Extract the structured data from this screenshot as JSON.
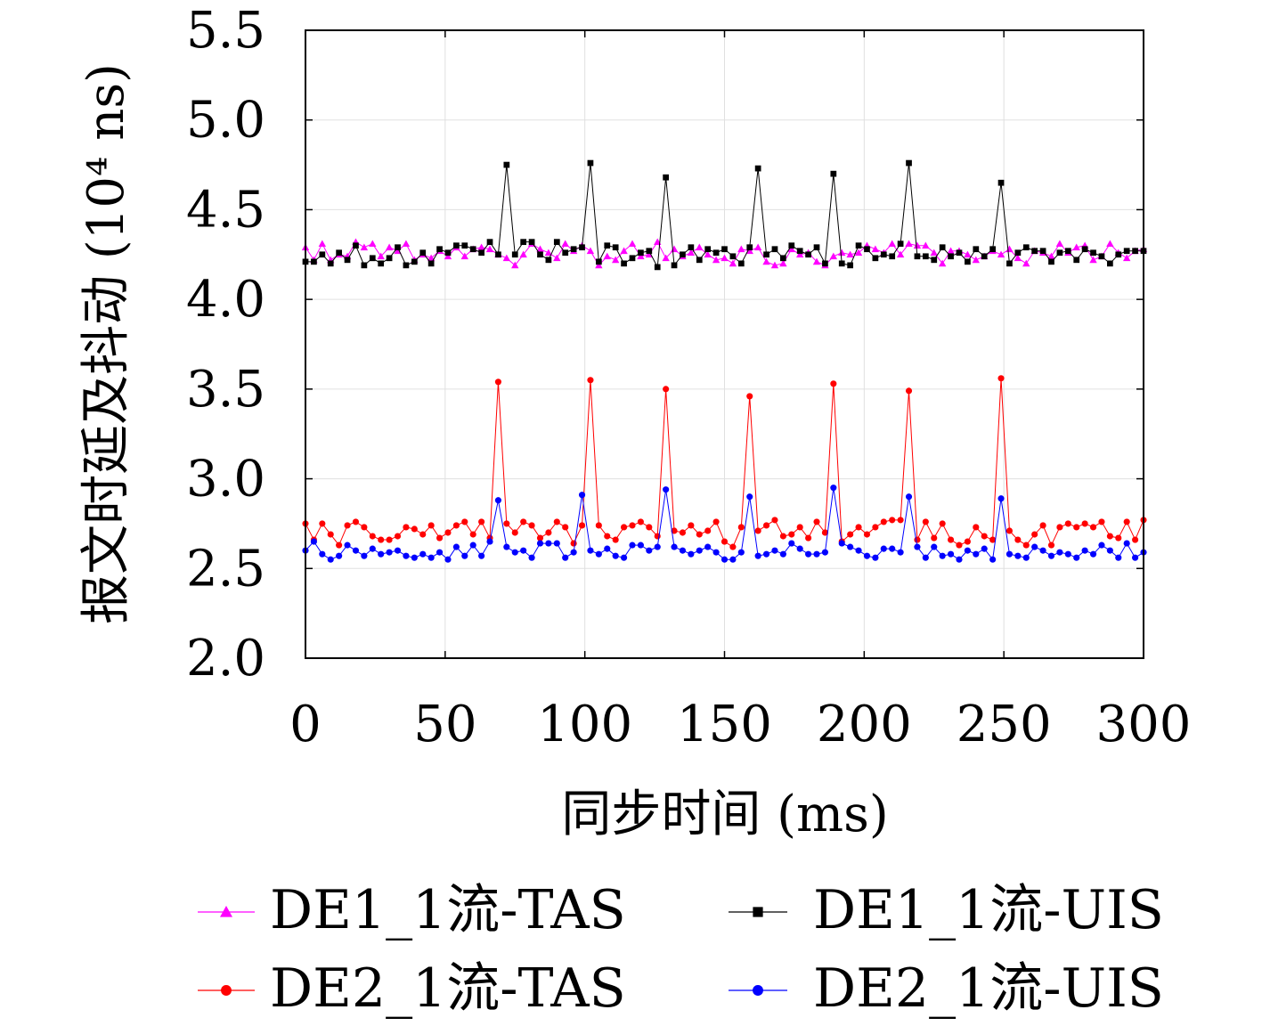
{
  "chart_data": {
    "type": "line",
    "title": "",
    "xlabel": "同步时间 (ms)",
    "ylabel": "报文时延及抖动 (10⁴ ns)",
    "xlim": [
      0,
      300
    ],
    "ylim": [
      2.0,
      5.5
    ],
    "x_ticks": [
      0,
      50,
      100,
      150,
      200,
      250,
      300
    ],
    "x_tick_labels": [
      "0",
      "50",
      "100",
      "150",
      "200",
      "250",
      "300"
    ],
    "y_ticks": [
      2.0,
      2.5,
      3.0,
      3.5,
      4.0,
      4.5,
      5.0,
      5.5
    ],
    "y_tick_labels": [
      "2.0",
      "2.5",
      "3.0",
      "3.5",
      "4.0",
      "4.5",
      "5.0",
      "5.5"
    ],
    "grid": true,
    "legend_position": "bottom",
    "sample_interval": 3,
    "series": [
      {
        "name": "DE1_1流-TAS",
        "color": "#ff00ff",
        "marker": "triangle",
        "x": [
          0,
          3,
          6,
          9,
          12,
          15,
          18,
          21,
          24,
          27,
          30,
          33,
          36,
          39,
          42,
          45,
          48,
          51,
          54,
          57,
          60,
          63,
          66,
          69,
          72,
          75,
          78,
          81,
          84,
          87,
          90,
          93,
          96,
          99,
          102,
          105,
          108,
          111,
          114,
          117,
          120,
          123,
          126,
          129,
          132,
          135,
          138,
          141,
          144,
          147,
          150,
          153,
          156,
          159,
          162,
          165,
          168,
          171,
          174,
          177,
          180,
          183,
          186,
          189,
          192,
          195,
          198,
          201,
          204,
          207,
          210,
          213,
          216,
          219,
          222,
          225,
          228,
          231,
          234,
          237,
          240,
          243,
          246,
          249,
          252,
          255,
          258,
          261,
          264,
          267,
          270,
          273,
          276,
          279,
          282,
          285,
          288,
          291,
          294,
          297,
          300
        ],
        "y": [
          4.29,
          4.22,
          4.31,
          4.22,
          4.25,
          4.24,
          4.32,
          4.29,
          4.31,
          4.24,
          4.29,
          4.27,
          4.31,
          4.22,
          4.25,
          4.23,
          4.27,
          4.24,
          4.29,
          4.24,
          4.28,
          4.29,
          4.28,
          4.25,
          4.23,
          4.19,
          4.25,
          4.31,
          4.28,
          4.26,
          4.23,
          4.31,
          4.27,
          4.3,
          4.27,
          4.19,
          4.24,
          4.22,
          4.27,
          4.31,
          4.24,
          4.25,
          4.32,
          4.23,
          4.28,
          4.24,
          4.26,
          4.29,
          4.25,
          4.22,
          4.23,
          4.2,
          4.28,
          4.27,
          4.29,
          4.21,
          4.19,
          4.2,
          4.28,
          4.25,
          4.26,
          4.21,
          4.19,
          4.24,
          4.26,
          4.25,
          4.26,
          4.3,
          4.28,
          4.26,
          4.31,
          4.25,
          4.31,
          4.3,
          4.3,
          4.26,
          4.2,
          4.27,
          4.27,
          4.25,
          4.22,
          4.24,
          4.27,
          4.25,
          4.28,
          4.23,
          4.2,
          4.27,
          4.26,
          4.24,
          4.31,
          4.26,
          4.29,
          4.3,
          4.22,
          4.24,
          4.31,
          4.26,
          4.23,
          4.27,
          4.28
        ]
      },
      {
        "name": "DE1_1流-UIS",
        "color": "#000000",
        "marker": "square",
        "x": [
          0,
          3,
          6,
          9,
          12,
          15,
          18,
          21,
          24,
          27,
          30,
          33,
          36,
          39,
          42,
          45,
          48,
          51,
          54,
          57,
          60,
          63,
          66,
          69,
          72,
          75,
          78,
          81,
          84,
          87,
          90,
          93,
          96,
          99,
          102,
          105,
          108,
          111,
          114,
          117,
          120,
          123,
          126,
          129,
          132,
          135,
          138,
          141,
          144,
          147,
          150,
          153,
          156,
          159,
          162,
          165,
          168,
          171,
          174,
          177,
          180,
          183,
          186,
          189,
          192,
          195,
          198,
          201,
          204,
          207,
          210,
          213,
          216,
          219,
          222,
          225,
          228,
          231,
          234,
          237,
          240,
          243,
          246,
          249,
          252,
          255,
          258,
          261,
          264,
          267,
          270,
          273,
          276,
          279,
          282,
          285,
          288,
          291,
          294,
          297,
          300
        ],
        "y": [
          4.21,
          4.21,
          4.25,
          4.2,
          4.26,
          4.22,
          4.3,
          4.19,
          4.23,
          4.2,
          4.23,
          4.29,
          4.19,
          4.21,
          4.26,
          4.2,
          4.28,
          4.26,
          4.3,
          4.3,
          4.28,
          4.26,
          4.32,
          4.25,
          4.75,
          4.25,
          4.32,
          4.32,
          4.25,
          4.22,
          4.32,
          4.26,
          4.28,
          4.29,
          4.76,
          4.21,
          4.3,
          4.29,
          4.2,
          4.23,
          4.26,
          4.27,
          4.18,
          4.68,
          4.19,
          4.25,
          4.29,
          4.22,
          4.28,
          4.26,
          4.28,
          4.24,
          4.2,
          4.29,
          4.73,
          4.25,
          4.28,
          4.23,
          4.3,
          4.27,
          4.25,
          4.29,
          4.2,
          4.7,
          4.2,
          4.19,
          4.3,
          4.28,
          4.23,
          4.25,
          4.24,
          4.31,
          4.76,
          4.24,
          4.24,
          4.22,
          4.29,
          4.24,
          4.26,
          4.21,
          4.28,
          4.24,
          4.28,
          4.65,
          4.2,
          4.26,
          4.29,
          4.27,
          4.27,
          4.21,
          4.26,
          4.27,
          4.22,
          4.28,
          4.26,
          4.24,
          4.2,
          4.25,
          4.27,
          4.27,
          4.27
        ]
      },
      {
        "name": "DE2_1流-TAS",
        "color": "#ff0000",
        "marker": "circle",
        "x": [
          0,
          3,
          6,
          9,
          12,
          15,
          18,
          21,
          24,
          27,
          30,
          33,
          36,
          39,
          42,
          45,
          48,
          51,
          54,
          57,
          60,
          63,
          66,
          69,
          72,
          75,
          78,
          81,
          84,
          87,
          90,
          93,
          96,
          99,
          102,
          105,
          108,
          111,
          114,
          117,
          120,
          123,
          126,
          129,
          132,
          135,
          138,
          141,
          144,
          147,
          150,
          153,
          156,
          159,
          162,
          165,
          168,
          171,
          174,
          177,
          180,
          183,
          186,
          189,
          192,
          195,
          198,
          201,
          204,
          207,
          210,
          213,
          216,
          219,
          222,
          225,
          228,
          231,
          234,
          237,
          240,
          243,
          246,
          249,
          252,
          255,
          258,
          261,
          264,
          267,
          270,
          273,
          276,
          279,
          282,
          285,
          288,
          291,
          294,
          297,
          300
        ],
        "y": [
          2.75,
          2.66,
          2.75,
          2.69,
          2.63,
          2.74,
          2.76,
          2.73,
          2.68,
          2.66,
          2.66,
          2.68,
          2.73,
          2.72,
          2.69,
          2.74,
          2.67,
          2.7,
          2.74,
          2.76,
          2.69,
          2.76,
          2.67,
          3.54,
          2.75,
          2.7,
          2.76,
          2.74,
          2.67,
          2.7,
          2.76,
          2.73,
          2.64,
          2.74,
          3.55,
          2.74,
          2.68,
          2.66,
          2.73,
          2.74,
          2.76,
          2.73,
          2.68,
          3.5,
          2.71,
          2.7,
          2.74,
          2.69,
          2.71,
          2.76,
          2.65,
          2.62,
          2.73,
          3.46,
          2.71,
          2.74,
          2.77,
          2.68,
          2.69,
          2.73,
          2.67,
          2.76,
          2.7,
          3.53,
          2.65,
          2.69,
          2.73,
          2.69,
          2.73,
          2.76,
          2.77,
          2.77,
          3.49,
          2.66,
          2.76,
          2.67,
          2.75,
          2.66,
          2.63,
          2.65,
          2.73,
          2.68,
          2.66,
          3.56,
          2.71,
          2.66,
          2.63,
          2.69,
          2.74,
          2.63,
          2.73,
          2.75,
          2.73,
          2.75,
          2.73,
          2.76,
          2.68,
          2.67,
          2.76,
          2.66,
          2.77
        ]
      },
      {
        "name": "DE2_1流-UIS",
        "color": "#0000ff",
        "marker": "circle",
        "x": [
          0,
          3,
          6,
          9,
          12,
          15,
          18,
          21,
          24,
          27,
          30,
          33,
          36,
          39,
          42,
          45,
          48,
          51,
          54,
          57,
          60,
          63,
          66,
          69,
          72,
          75,
          78,
          81,
          84,
          87,
          90,
          93,
          96,
          99,
          102,
          105,
          108,
          111,
          114,
          117,
          120,
          123,
          126,
          129,
          132,
          135,
          138,
          141,
          144,
          147,
          150,
          153,
          156,
          159,
          162,
          165,
          168,
          171,
          174,
          177,
          180,
          183,
          186,
          189,
          192,
          195,
          198,
          201,
          204,
          207,
          210,
          213,
          216,
          219,
          222,
          225,
          228,
          231,
          234,
          237,
          240,
          243,
          246,
          249,
          252,
          255,
          258,
          261,
          264,
          267,
          270,
          273,
          276,
          279,
          282,
          285,
          288,
          291,
          294,
          297,
          300
        ],
        "y": [
          2.6,
          2.65,
          2.58,
          2.55,
          2.57,
          2.63,
          2.6,
          2.57,
          2.61,
          2.58,
          2.59,
          2.6,
          2.57,
          2.56,
          2.58,
          2.56,
          2.59,
          2.55,
          2.62,
          2.57,
          2.63,
          2.57,
          2.65,
          2.88,
          2.62,
          2.59,
          2.6,
          2.56,
          2.64,
          2.64,
          2.64,
          2.56,
          2.59,
          2.91,
          2.6,
          2.58,
          2.61,
          2.57,
          2.56,
          2.63,
          2.63,
          2.6,
          2.62,
          2.94,
          2.62,
          2.6,
          2.58,
          2.6,
          2.62,
          2.59,
          2.55,
          2.55,
          2.59,
          2.9,
          2.57,
          2.58,
          2.6,
          2.58,
          2.64,
          2.61,
          2.58,
          2.58,
          2.59,
          2.95,
          2.64,
          2.62,
          2.6,
          2.57,
          2.56,
          2.61,
          2.61,
          2.59,
          2.9,
          2.62,
          2.56,
          2.62,
          2.57,
          2.58,
          2.55,
          2.6,
          2.58,
          2.61,
          2.55,
          2.89,
          2.58,
          2.57,
          2.56,
          2.62,
          2.6,
          2.57,
          2.59,
          2.58,
          2.56,
          2.6,
          2.58,
          2.63,
          2.6,
          2.56,
          2.64,
          2.56,
          2.59
        ]
      }
    ]
  }
}
